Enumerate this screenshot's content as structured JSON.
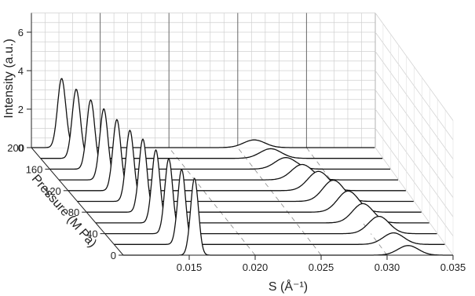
{
  "chart_data": {
    "type": "line",
    "projection": "3d-waterfall",
    "xlabel": "S (Å⁻¹)",
    "ylabel": "Pressure (M Pa)",
    "zlabel": "Intensity (a.u.)",
    "x_ticks": [
      "0.015",
      "0.020",
      "0.025",
      "0.030",
      "0.035"
    ],
    "x_tick_values": [
      0.015,
      0.02,
      0.025,
      0.03,
      0.035
    ],
    "y_ticks": [
      "0",
      "40",
      "80",
      "120",
      "160",
      "200"
    ],
    "y_tick_values": [
      0,
      40,
      80,
      120,
      160,
      200
    ],
    "z_ticks": [
      "0",
      "2",
      "4",
      "6"
    ],
    "z_tick_values": [
      0,
      2,
      4,
      6
    ],
    "xlim": [
      0.01,
      0.035
    ],
    "ylim": [
      0,
      200
    ],
    "zlim": [
      0,
      7
    ],
    "grid": true,
    "series": [
      {
        "pressure": 0,
        "peak1_s": 0.0154,
        "peak1_height": 4.0,
        "peak2_s": 0.0316,
        "peak2_height": 0.5
      },
      {
        "pressure": 20,
        "peak1_s": 0.0151,
        "peak1_height": 3.9,
        "peak2_s": 0.0311,
        "peak2_height": 0.6
      },
      {
        "pressure": 40,
        "peak1_s": 0.0148,
        "peak1_height": 3.9,
        "peak2_s": 0.0306,
        "peak2_height": 0.9
      },
      {
        "pressure": 60,
        "peak1_s": 0.0145,
        "peak1_height": 3.8,
        "peak2_s": 0.03,
        "peak2_height": 1.0
      },
      {
        "pressure": 80,
        "peak1_s": 0.0142,
        "peak1_height": 3.8,
        "peak2_s": 0.0295,
        "peak2_height": 1.1
      },
      {
        "pressure": 100,
        "peak1_s": 0.0139,
        "peak1_height": 3.7,
        "peak2_s": 0.029,
        "peak2_height": 1.1
      },
      {
        "pressure": 120,
        "peak1_s": 0.0136,
        "peak1_height": 3.7,
        "peak2_s": 0.0285,
        "peak2_height": 1.0
      },
      {
        "pressure": 140,
        "peak1_s": 0.0133,
        "peak1_height": 3.7,
        "peak2_s": 0.0279,
        "peak2_height": 0.8
      },
      {
        "pressure": 160,
        "peak1_s": 0.013,
        "peak1_height": 3.6,
        "peak2_s": 0.0273,
        "peak2_height": 0.6
      },
      {
        "pressure": 180,
        "peak1_s": 0.0126,
        "peak1_height": 3.6,
        "peak2_s": 0.0268,
        "peak2_height": 0.5
      },
      {
        "pressure": 200,
        "peak1_s": 0.0122,
        "peak1_height": 3.6,
        "peak2_s": 0.0262,
        "peak2_height": 0.4
      }
    ]
  }
}
